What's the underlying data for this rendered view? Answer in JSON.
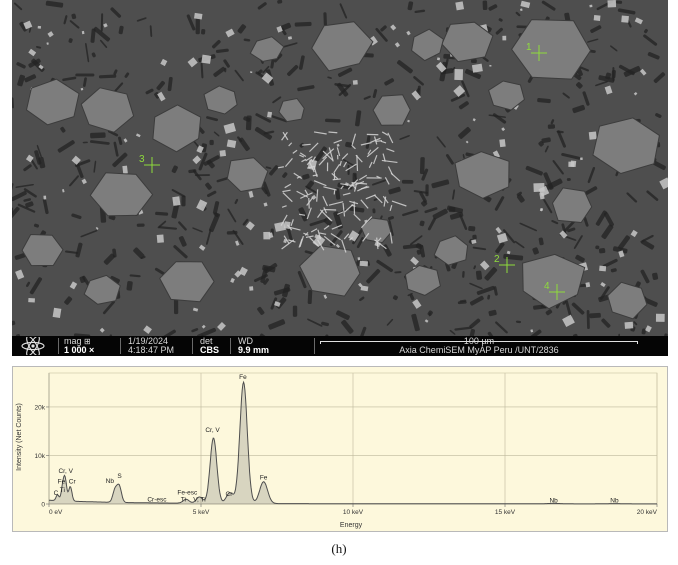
{
  "sem_image": {
    "markers": [
      {
        "label": "1"
      },
      {
        "label": "2"
      },
      {
        "label": "3"
      },
      {
        "label": "4"
      }
    ],
    "colors": {
      "matrix": "#505050",
      "carbide": "#7d7d7d",
      "bright_phase": "#c8c8c8",
      "dark_phase": "#232323",
      "marker": "#8fdc3c"
    }
  },
  "info_bar": {
    "logo_icon": "atom-icon",
    "mag_label": "mag",
    "mag_value": "1 000 ×",
    "date": "1/19/2024",
    "time": "4:18:47 PM",
    "det_label": "det",
    "det_value": "CBS",
    "wd_label": "WD",
    "wd_value": "9.9 mm",
    "scale_label": "100 µm",
    "instrument": "Axia ChemiSEM MyAP Peru /UNT/2836"
  },
  "chart_data": {
    "type": "line",
    "xlabel": "Energy",
    "ylabel": "Intensity (Net Counts)",
    "xlim": [
      0,
      20
    ],
    "ylim": [
      0,
      27000
    ],
    "x_ticks": [
      {
        "value": 0,
        "label": "0 eV"
      },
      {
        "value": 5,
        "label": "5 keV"
      },
      {
        "value": 10,
        "label": "10 keV"
      },
      {
        "value": 15,
        "label": "15 keV"
      },
      {
        "value": 20,
        "label": "20 keV"
      }
    ],
    "y_ticks": [
      {
        "value": 0,
        "label": "0"
      },
      {
        "value": 10000,
        "label": "10k"
      },
      {
        "value": 20000,
        "label": "20k"
      }
    ],
    "grid": true,
    "series": [
      {
        "color": "#4a4a4a",
        "peaks": [
          {
            "energy": 0.28,
            "counts": 1200
          },
          {
            "energy": 0.45,
            "counts": 2600
          },
          {
            "energy": 0.53,
            "counts": 4300
          },
          {
            "energy": 0.7,
            "counts": 3000
          },
          {
            "energy": 2.17,
            "counts": 2500
          },
          {
            "energy": 2.31,
            "counts": 3300
          },
          {
            "energy": 4.51,
            "counts": 800
          },
          {
            "energy": 4.95,
            "counts": 1300
          },
          {
            "energy": 5.41,
            "counts": 13500
          },
          {
            "energy": 5.95,
            "counts": 2200
          },
          {
            "energy": 6.4,
            "counts": 25000
          },
          {
            "energy": 7.06,
            "counts": 4500
          },
          {
            "energy": 16.6,
            "counts": 90
          },
          {
            "energy": 18.6,
            "counts": 60
          }
        ]
      }
    ],
    "annotations": [
      {
        "text": "C",
        "x": 0.23,
        "y": 1900
      },
      {
        "text": "Ti",
        "x": 0.44,
        "y": 2500
      },
      {
        "text": "Fe, Cr",
        "x": 0.58,
        "y": 4200
      },
      {
        "text": "Cr, V",
        "x": 0.55,
        "y": 6400
      },
      {
        "text": "Nb",
        "x": 2.0,
        "y": 4300
      },
      {
        "text": "S",
        "x": 2.32,
        "y": 5400
      },
      {
        "text": "Cr-esc",
        "x": 3.55,
        "y": 500
      },
      {
        "text": "Fe-esc",
        "x": 4.55,
        "y": 2000
      },
      {
        "text": "Ti",
        "x": 4.42,
        "y": 500
      },
      {
        "text": "V, Ti",
        "x": 4.95,
        "y": 500
      },
      {
        "text": "Cr, V",
        "x": 5.38,
        "y": 14800
      },
      {
        "text": "Cr",
        "x": 5.92,
        "y": 1700
      },
      {
        "text": "Fe",
        "x": 6.38,
        "y": 25800
      },
      {
        "text": "Fe",
        "x": 7.06,
        "y": 5100
      },
      {
        "text": "Nb",
        "x": 16.6,
        "y": 300
      },
      {
        "text": "Nb",
        "x": 18.6,
        "y": 300
      }
    ]
  },
  "caption": "(h)"
}
